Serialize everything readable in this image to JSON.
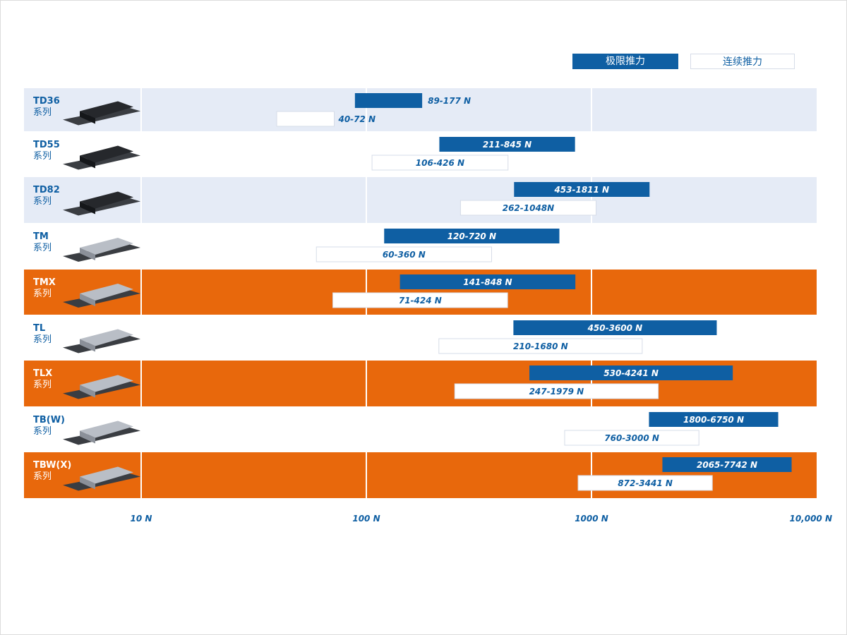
{
  "legend": {
    "peak": "极限推力",
    "continuous": "连续推力"
  },
  "colors": {
    "peak": "#0f5fa3",
    "continuous": "#ffffff",
    "row_light": "#e5ebf6",
    "row_white": "#ffffff",
    "row_orange": "#e8680c",
    "label_blue": "#0f5fa3"
  },
  "chart_data": {
    "type": "bar",
    "orientation": "horizontal-range",
    "x_scale": "log",
    "xlim": [
      10,
      10000
    ],
    "x_ticks": [
      10,
      100,
      1000,
      10000
    ],
    "x_tick_labels": [
      "10 N",
      "100 N",
      "1000 N",
      "10,000 N"
    ],
    "grid": true,
    "legend_placement": "top-right",
    "series_names": [
      "极限推力",
      "连续推力"
    ],
    "rows": [
      {
        "name": "TD36",
        "sub": "系列",
        "style": "light",
        "peak": [
          89,
          177
        ],
        "peak_label": "89-177 N",
        "cont": [
          40,
          72
        ],
        "cont_label": "40-72 N"
      },
      {
        "name": "TD55",
        "sub": "系列",
        "style": "white",
        "peak": [
          211,
          845
        ],
        "peak_label": "211-845 N",
        "cont": [
          106,
          426
        ],
        "cont_label": "106-426 N"
      },
      {
        "name": "TD82",
        "sub": "系列",
        "style": "light",
        "peak": [
          453,
          1811
        ],
        "peak_label": "453-1811 N",
        "cont": [
          262,
          1048
        ],
        "cont_label": "262-1048N"
      },
      {
        "name": "TM",
        "sub": "系列",
        "style": "white",
        "peak": [
          120,
          720
        ],
        "peak_label": "120-720 N",
        "cont": [
          60,
          360
        ],
        "cont_label": "60-360 N"
      },
      {
        "name": "TMX",
        "sub": "系列",
        "style": "orange",
        "peak": [
          141,
          848
        ],
        "peak_label": "141-848 N",
        "cont": [
          71,
          424
        ],
        "cont_label": "71-424 N"
      },
      {
        "name": "TL",
        "sub": "系列",
        "style": "white",
        "peak": [
          450,
          3600
        ],
        "peak_label": "450-3600 N",
        "cont": [
          210,
          1680
        ],
        "cont_label": "210-1680 N"
      },
      {
        "name": "TLX",
        "sub": "系列",
        "style": "orange",
        "peak": [
          530,
          4241
        ],
        "peak_label": "530-4241 N",
        "cont": [
          247,
          1979
        ],
        "cont_label": "247-1979 N"
      },
      {
        "name": "TB(W)",
        "sub": "系列",
        "style": "white",
        "peak": [
          1800,
          6750
        ],
        "peak_label": "1800-6750 N",
        "cont": [
          760,
          3000
        ],
        "cont_label": "760-3000 N"
      },
      {
        "name": "TBW(X)",
        "sub": "系列",
        "style": "orange",
        "peak": [
          2065,
          7742
        ],
        "peak_label": "2065-7742 N",
        "cont": [
          872,
          3441
        ],
        "cont_label": "872-3441 N"
      }
    ]
  }
}
